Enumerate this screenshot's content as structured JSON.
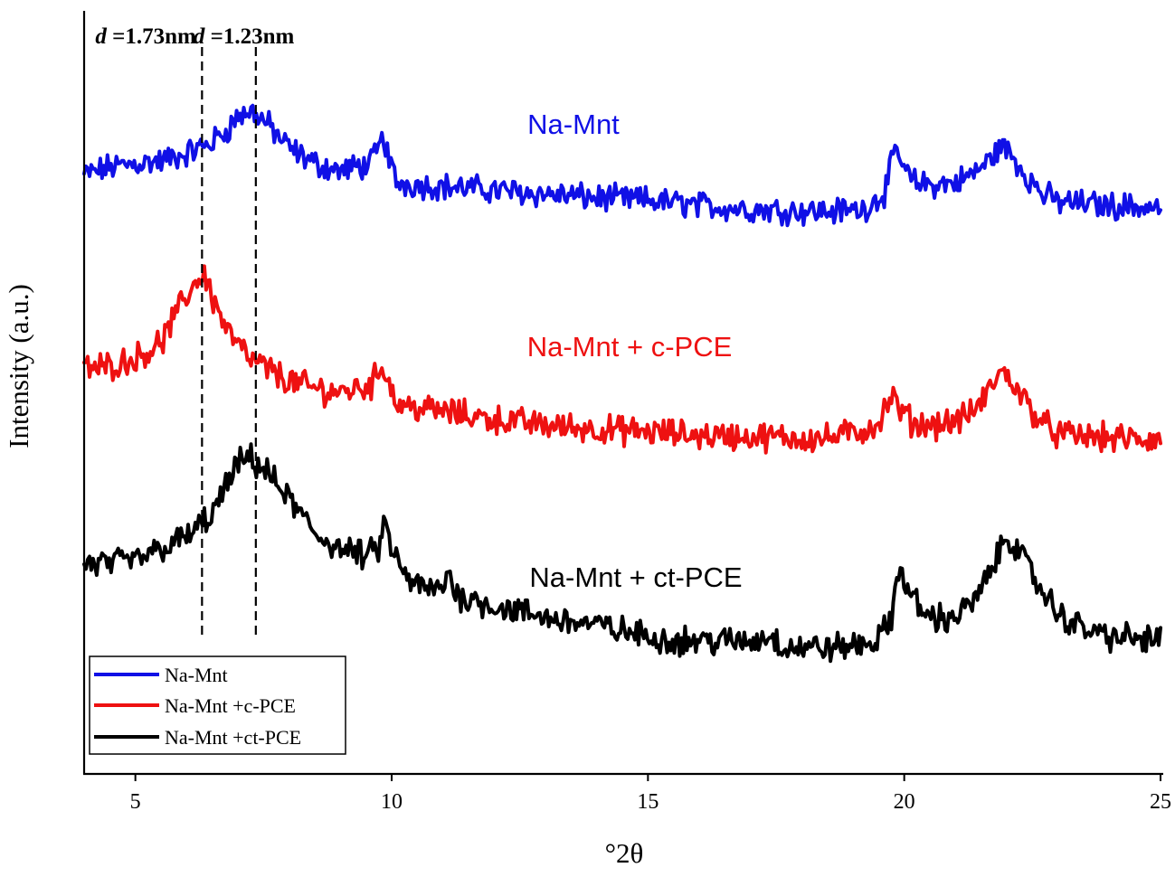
{
  "chart_data": {
    "type": "line",
    "title": "",
    "xlabel": "°2θ",
    "ylabel": "Intensity (a.u.)",
    "xlim": [
      4,
      25
    ],
    "ylim": [
      0,
      100
    ],
    "xticks": [
      5,
      10,
      15,
      20,
      25
    ],
    "grid": false,
    "legend_position": "bottom-left",
    "reference_lines": [
      {
        "x": 6.3,
        "label_prefix": "d",
        "label_value": " =1.73nm"
      },
      {
        "x": 7.35,
        "label_prefix": "d",
        "label_value": " =1.23nm"
      }
    ],
    "series": [
      {
        "name": "Na-Mnt",
        "legend_label": "Na-Mnt",
        "plot_label": "Na-Mnt",
        "color": "#1010e6",
        "noise": 1.4,
        "x": [
          4,
          4.5,
          5,
          5.5,
          6,
          6.5,
          6.8,
          7,
          7.3,
          7.6,
          8,
          8.5,
          9,
          9.6,
          9.85,
          9.95,
          10.1,
          10.5,
          11,
          12,
          13,
          14,
          15,
          16,
          17,
          18,
          18.5,
          19.2,
          19.6,
          19.85,
          20,
          20.2,
          20.6,
          21,
          21.3,
          21.6,
          21.9,
          22.1,
          22.4,
          22.7,
          23,
          24,
          25
        ],
        "values": [
          78.5,
          79.5,
          80,
          80.3,
          81.3,
          82.8,
          84.5,
          86.2,
          86.8,
          85,
          82,
          80,
          79,
          80,
          83.5,
          80.3,
          77.5,
          77.2,
          77,
          76.5,
          76,
          75.5,
          75.2,
          74.5,
          74,
          73.8,
          73.7,
          74,
          76,
          82,
          79,
          77.5,
          77.2,
          77.5,
          78.5,
          80,
          82.4,
          81,
          78.3,
          76,
          75,
          74.5,
          74.2
        ]
      },
      {
        "name": "Na-Mnt + c-PCE",
        "legend_label": "Na-Mnt +c-PCE",
        "plot_label": "Na-Mnt  + c-PCE",
        "color": "#ee1111",
        "noise": 1.5,
        "x": [
          4,
          4.5,
          5,
          5.5,
          5.9,
          6.2,
          6.35,
          6.5,
          6.8,
          7.2,
          7.6,
          8,
          8.5,
          9,
          9.6,
          9.85,
          9.95,
          10.1,
          10.5,
          11,
          12,
          13,
          14,
          15,
          16,
          17,
          18,
          18.5,
          19.2,
          19.5,
          19.75,
          19.9,
          20.2,
          20.6,
          21,
          21.3,
          21.6,
          21.85,
          22.1,
          22.4,
          22.7,
          23,
          24,
          25
        ],
        "values": [
          53,
          53.5,
          54.5,
          56.5,
          61.5,
          64.8,
          65.5,
          62.5,
          58,
          54.5,
          53,
          51.5,
          50.5,
          50,
          51,
          53.8,
          51.2,
          48.5,
          48,
          47.5,
          46.5,
          45.7,
          45.2,
          44.8,
          44.4,
          44.2,
          44,
          44,
          45,
          46,
          49.5,
          47.8,
          45.8,
          45.8,
          46.2,
          47.2,
          49.5,
          52.8,
          51.5,
          48.5,
          46,
          44.5,
          44,
          43.7
        ]
      },
      {
        "name": "Na-Mnt + ct-PCE",
        "legend_label": "Na-Mnt +ct-PCE",
        "plot_label": "Na-Mnt  + ct-PCE",
        "color": "#000000",
        "noise": 1.5,
        "x": [
          4,
          4.5,
          5,
          5.5,
          6,
          6.5,
          6.8,
          7,
          7.2,
          7.5,
          8,
          8.5,
          9,
          9.5,
          9.75,
          9.85,
          10,
          10.2,
          10.5,
          11,
          11.1,
          11.25,
          11.5,
          12,
          13,
          14,
          15,
          15.5,
          16,
          17,
          17.4,
          17.6,
          18,
          18.5,
          19,
          19.5,
          19.75,
          19.9,
          20.1,
          20.4,
          20.8,
          21.2,
          21.5,
          21.8,
          22,
          22.2,
          22.5,
          22.8,
          23,
          23.5,
          24,
          25
        ],
        "values": [
          27.5,
          27.5,
          28,
          29.5,
          31,
          34,
          38,
          40.5,
          41.5,
          40,
          36,
          31.5,
          29.5,
          28.5,
          29.5,
          33,
          29.5,
          26.5,
          24.5,
          24,
          27,
          23.5,
          23,
          22,
          20.5,
          19.5,
          18,
          17.5,
          17.5,
          17.3,
          18.2,
          16.8,
          16.6,
          16.5,
          16.8,
          17.5,
          20.5,
          27.5,
          23.5,
          21,
          20.2,
          21.5,
          24,
          28,
          31.5,
          29.5,
          26,
          23,
          21,
          19,
          18,
          17.5
        ]
      }
    ]
  }
}
